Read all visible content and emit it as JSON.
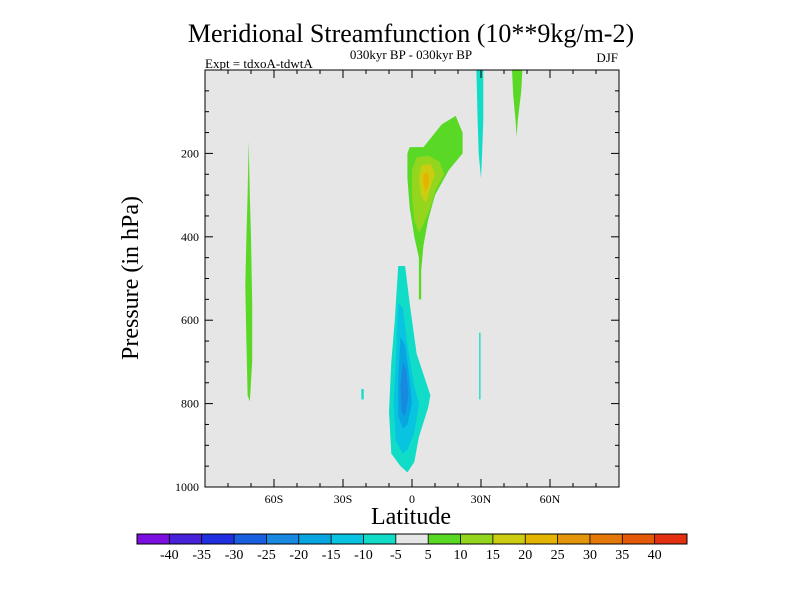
{
  "chart_data": {
    "type": "contour",
    "title": "Meridional Streamfunction (10**9kg/m-2)",
    "subtitle": "030kyr BP - 030kyr BP",
    "left_label": "Expt = tdxoA-tdwtA",
    "right_label": "DJF",
    "xlabel": "Latitude",
    "ylabel": "Pressure (in hPa)",
    "xlim": [
      -90,
      90
    ],
    "ylim": [
      1000,
      0
    ],
    "x_ticks": [
      {
        "value": -60,
        "label": "60S"
      },
      {
        "value": -30,
        "label": "30S"
      },
      {
        "value": 0,
        "label": "0"
      },
      {
        "value": 30,
        "label": "30N"
      },
      {
        "value": 60,
        "label": "60N"
      }
    ],
    "y_ticks": [
      {
        "value": 200,
        "label": "200"
      },
      {
        "value": 400,
        "label": "400"
      },
      {
        "value": 600,
        "label": "600"
      },
      {
        "value": 800,
        "label": "800"
      },
      {
        "value": 1000,
        "label": "1000"
      }
    ],
    "background_color": "#e6e6e6",
    "colorbar": {
      "levels": [
        -40,
        -35,
        -30,
        -25,
        -20,
        -15,
        -10,
        -5,
        5,
        10,
        15,
        20,
        25,
        30,
        35,
        40
      ],
      "labels": [
        "-40",
        "-35",
        "-30",
        "-25",
        "-20",
        "-15",
        "-10",
        "-5",
        "5",
        "10",
        "15",
        "20",
        "25",
        "30",
        "35",
        "40"
      ],
      "colors": [
        "#7b0fe0",
        "#4722d8",
        "#2030e0",
        "#1860e0",
        "#1888e0",
        "#08a6e0",
        "#08c4e0",
        "#10dcc8",
        "#e6e6e6",
        "#5ad826",
        "#94d61e",
        "#cccc10",
        "#e4b400",
        "#e4960a",
        "#e47808",
        "#e45a08",
        "#e43010"
      ]
    },
    "features": [
      {
        "name": "southern-high-latitude-positive-cell",
        "level": 5,
        "color": "#5ad826",
        "points": [
          [
            -71,
            170
          ],
          [
            -70.5,
            300
          ],
          [
            -70,
            400
          ],
          [
            -69.5,
            560
          ],
          [
            -69.5,
            700
          ],
          [
            -70.5,
            795
          ],
          [
            -71.5,
            780
          ],
          [
            -72,
            650
          ],
          [
            -72.5,
            520
          ],
          [
            -72,
            400
          ],
          [
            -71.5,
            300
          ]
        ]
      },
      {
        "name": "tropical-upper-positive-cell",
        "level": 5,
        "color": "#5ad826",
        "points": [
          [
            -1,
            185
          ],
          [
            5,
            185
          ],
          [
            13,
            130
          ],
          [
            19,
            110
          ],
          [
            22,
            150
          ],
          [
            22,
            200
          ],
          [
            16,
            240
          ],
          [
            10,
            300
          ],
          [
            7,
            360
          ],
          [
            5,
            420
          ],
          [
            4,
            480
          ],
          [
            4,
            550
          ],
          [
            3,
            550
          ],
          [
            3,
            450
          ],
          [
            1,
            400
          ],
          [
            -1,
            330
          ],
          [
            -2,
            260
          ],
          [
            -2,
            200
          ]
        ]
      },
      {
        "name": "tropical-upper-positive-core-10",
        "level": 10,
        "color": "#94d61e",
        "points": [
          [
            2,
            210
          ],
          [
            7,
            205
          ],
          [
            12,
            220
          ],
          [
            14,
            250
          ],
          [
            10,
            290
          ],
          [
            8,
            330
          ],
          [
            5,
            370
          ],
          [
            3,
            390
          ],
          [
            1,
            360
          ],
          [
            0,
            300
          ],
          [
            0,
            240
          ]
        ]
      },
      {
        "name": "tropical-upper-positive-core-15",
        "level": 15,
        "color": "#cccc10",
        "points": [
          [
            4,
            230
          ],
          [
            8,
            225
          ],
          [
            10,
            250
          ],
          [
            8,
            280
          ],
          [
            6,
            320
          ],
          [
            4,
            300
          ],
          [
            3,
            260
          ]
        ]
      },
      {
        "name": "tropical-upper-positive-core-20",
        "level": 20,
        "color": "#e4b400",
        "points": [
          [
            5,
            248
          ],
          [
            7,
            246
          ],
          [
            7.5,
            272
          ],
          [
            6,
            292
          ],
          [
            4.8,
            270
          ]
        ]
      },
      {
        "name": "hadley-lower-negative-cell",
        "level": -5,
        "color": "#10dcc8",
        "points": [
          [
            -6,
            470
          ],
          [
            -3,
            470
          ],
          [
            -1,
            560
          ],
          [
            2,
            680
          ],
          [
            8,
            780
          ],
          [
            7,
            810
          ],
          [
            3,
            880
          ],
          [
            1,
            940
          ],
          [
            -2,
            965
          ],
          [
            -5,
            950
          ],
          [
            -9,
            920
          ],
          [
            -10,
            820
          ],
          [
            -9,
            700
          ],
          [
            -7.5,
            600
          ]
        ]
      },
      {
        "name": "hadley-lower-negative-core-10",
        "level": -10,
        "color": "#08c4e0",
        "points": [
          [
            -6,
            560
          ],
          [
            -4,
            570
          ],
          [
            -2,
            660
          ],
          [
            1,
            760
          ],
          [
            3,
            800
          ],
          [
            1,
            870
          ],
          [
            -2,
            910
          ],
          [
            -4,
            920
          ],
          [
            -7,
            890
          ],
          [
            -8,
            800
          ],
          [
            -7,
            700
          ]
        ]
      },
      {
        "name": "hadley-lower-negative-core-15",
        "level": -15,
        "color": "#08a6e0",
        "points": [
          [
            -5,
            640
          ],
          [
            -3,
            660
          ],
          [
            -1,
            740
          ],
          [
            0,
            800
          ],
          [
            -2,
            850
          ],
          [
            -4,
            860
          ],
          [
            -6,
            830
          ],
          [
            -6,
            740
          ]
        ]
      },
      {
        "name": "hadley-lower-negative-core-20",
        "level": -20,
        "color": "#1888e0",
        "points": [
          [
            -4,
            700
          ],
          [
            -2.5,
            720
          ],
          [
            -1.5,
            780
          ],
          [
            -3,
            830
          ],
          [
            -4.5,
            820
          ],
          [
            -5,
            760
          ]
        ]
      },
      {
        "name": "tropical-30n-negative-strip",
        "level": -5,
        "color": "#10dcc8",
        "points": [
          [
            28,
            0
          ],
          [
            31,
            0
          ],
          [
            31,
            120
          ],
          [
            30.5,
            200
          ],
          [
            30,
            260
          ],
          [
            29,
            200
          ],
          [
            28.5,
            120
          ]
        ]
      },
      {
        "name": "tropical-30n-lower-negative-line",
        "level": -5,
        "color": "#10dcc8",
        "points": [
          [
            29.2,
            630
          ],
          [
            29.8,
            630
          ],
          [
            29.8,
            790
          ],
          [
            29.2,
            790
          ]
        ]
      },
      {
        "name": "midlatitude-45n-positive-cell",
        "level": 5,
        "color": "#5ad826",
        "points": [
          [
            43.5,
            0
          ],
          [
            48,
            0
          ],
          [
            47.5,
            50
          ],
          [
            46,
            120
          ],
          [
            45.5,
            160
          ],
          [
            45,
            120
          ],
          [
            44,
            60
          ]
        ]
      },
      {
        "name": "southern-subtropical-negative-dot",
        "level": -5,
        "color": "#10dcc8",
        "points": [
          [
            -22,
            765
          ],
          [
            -21,
            765
          ],
          [
            -21,
            790
          ],
          [
            -22,
            790
          ]
        ]
      }
    ]
  }
}
